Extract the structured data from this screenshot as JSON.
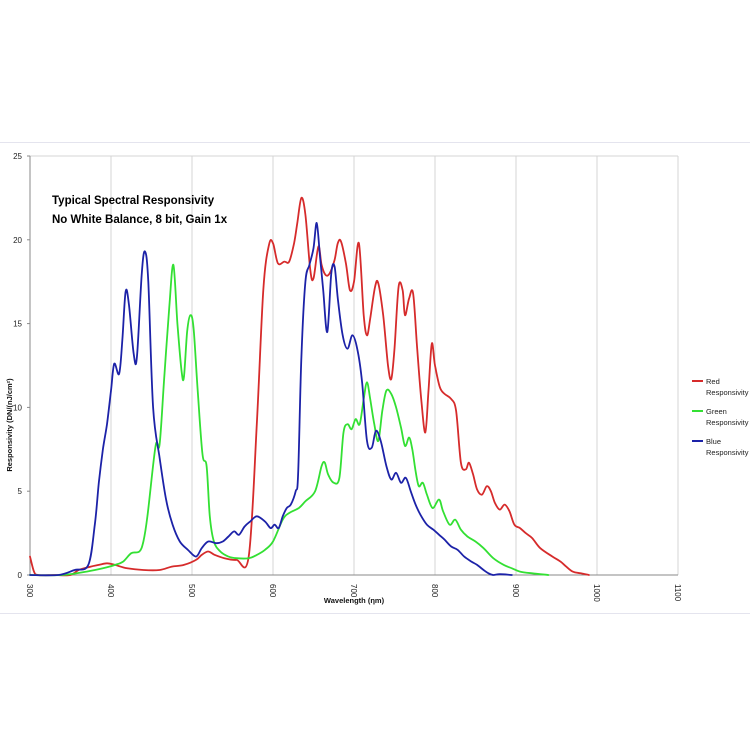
{
  "chart_data": {
    "type": "line",
    "title_lines": [
      "Typical Spectral Responsivity",
      "No White Balance, 8 bit, Gain 1x"
    ],
    "xlabel": "Wavelength (ηm)",
    "ylabel": "Responsivity (DN/(nJ/cm²)",
    "xlim": [
      300,
      1100
    ],
    "ylim": [
      0,
      25
    ],
    "x_ticks": [
      "300",
      "400",
      "500",
      "600",
      "700",
      "800",
      "900",
      "1000",
      "1100"
    ],
    "y_ticks": [
      "0",
      "5",
      "10",
      "15",
      "20",
      "25"
    ],
    "grid": "vertical",
    "legend_position": "right",
    "series": [
      {
        "name": "Red Responsivity",
        "legend_lines": [
          "Red",
          "Responsivity"
        ],
        "color": "#d62b2b",
        "points": [
          [
            300,
            1.1
          ],
          [
            305,
            0.2
          ],
          [
            310,
            0
          ],
          [
            330,
            0
          ],
          [
            350,
            0
          ],
          [
            360,
            0.3
          ],
          [
            375,
            0.5
          ],
          [
            385,
            0.6
          ],
          [
            395,
            0.7
          ],
          [
            405,
            0.6
          ],
          [
            420,
            0.4
          ],
          [
            440,
            0.3
          ],
          [
            460,
            0.3
          ],
          [
            475,
            0.5
          ],
          [
            490,
            0.6
          ],
          [
            505,
            0.9
          ],
          [
            512,
            1.2
          ],
          [
            520,
            1.4
          ],
          [
            528,
            1.2
          ],
          [
            540,
            1.0
          ],
          [
            555,
            0.9
          ],
          [
            570,
            1.1
          ],
          [
            580,
            9
          ],
          [
            588,
            17
          ],
          [
            595,
            19.7
          ],
          [
            600,
            19.8
          ],
          [
            606,
            18.6
          ],
          [
            614,
            18.7
          ],
          [
            620,
            18.7
          ],
          [
            626,
            19.8
          ],
          [
            630,
            21
          ],
          [
            635,
            22.5
          ],
          [
            640,
            21.5
          ],
          [
            646,
            18.2
          ],
          [
            650,
            17.7
          ],
          [
            656,
            19.6
          ],
          [
            660,
            18.5
          ],
          [
            665,
            17.9
          ],
          [
            670,
            18.0
          ],
          [
            676,
            18.8
          ],
          [
            680,
            19.8
          ],
          [
            684,
            19.9
          ],
          [
            690,
            18.6
          ],
          [
            695,
            17.0
          ],
          [
            700,
            17.5
          ],
          [
            706,
            19.8
          ],
          [
            712,
            15.5
          ],
          [
            716,
            14.3
          ],
          [
            720,
            15.3
          ],
          [
            726,
            17.2
          ],
          [
            730,
            17.4
          ],
          [
            736,
            15.5
          ],
          [
            742,
            12.5
          ],
          [
            746,
            11.7
          ],
          [
            750,
            13.5
          ],
          [
            755,
            17.2
          ],
          [
            760,
            17.0
          ],
          [
            763,
            15.5
          ],
          [
            768,
            16.5
          ],
          [
            773,
            16.8
          ],
          [
            778,
            13.5
          ],
          [
            783,
            10.5
          ],
          [
            788,
            8.5
          ],
          [
            792,
            11
          ],
          [
            796,
            13.8
          ],
          [
            800,
            12.5
          ],
          [
            806,
            11.2
          ],
          [
            812,
            10.8
          ],
          [
            820,
            10.5
          ],
          [
            826,
            9.8
          ],
          [
            832,
            6.7
          ],
          [
            838,
            6.3
          ],
          [
            842,
            6.7
          ],
          [
            847,
            6.0
          ],
          [
            852,
            5.1
          ],
          [
            858,
            4.8
          ],
          [
            864,
            5.3
          ],
          [
            869,
            5.0
          ],
          [
            874,
            4.3
          ],
          [
            880,
            3.9
          ],
          [
            886,
            4.2
          ],
          [
            892,
            3.8
          ],
          [
            898,
            3.0
          ],
          [
            905,
            2.8
          ],
          [
            912,
            2.5
          ],
          [
            920,
            2.2
          ],
          [
            930,
            1.6
          ],
          [
            945,
            1.1
          ],
          [
            955,
            0.8
          ],
          [
            962,
            0.5
          ],
          [
            970,
            0.2
          ],
          [
            980,
            0.1
          ],
          [
            990,
            0
          ]
        ]
      },
      {
        "name": "Green Responsivity",
        "legend_lines": [
          "Green",
          "Responsivity"
        ],
        "color": "#33e033",
        "points": [
          [
            300,
            0
          ],
          [
            340,
            0
          ],
          [
            370,
            0.2
          ],
          [
            390,
            0.4
          ],
          [
            405,
            0.6
          ],
          [
            415,
            0.8
          ],
          [
            425,
            1.3
          ],
          [
            435,
            1.4
          ],
          [
            440,
            2.0
          ],
          [
            445,
            3.5
          ],
          [
            455,
            7.7
          ],
          [
            460,
            7.8
          ],
          [
            466,
            12
          ],
          [
            472,
            16
          ],
          [
            477,
            18.5
          ],
          [
            482,
            15
          ],
          [
            487,
            12.2
          ],
          [
            490,
            11.8
          ],
          [
            494,
            14.5
          ],
          [
            498,
            15.5
          ],
          [
            502,
            14.7
          ],
          [
            507,
            11
          ],
          [
            513,
            7.2
          ],
          [
            518,
            6.5
          ],
          [
            522,
            3.5
          ],
          [
            527,
            2.0
          ],
          [
            535,
            1.4
          ],
          [
            545,
            1.1
          ],
          [
            555,
            1.0
          ],
          [
            570,
            1.0
          ],
          [
            580,
            1.2
          ],
          [
            590,
            1.5
          ],
          [
            600,
            2.0
          ],
          [
            612,
            3.3
          ],
          [
            620,
            3.7
          ],
          [
            632,
            4.0
          ],
          [
            640,
            4.4
          ],
          [
            652,
            5.0
          ],
          [
            660,
            6.5
          ],
          [
            664,
            6.7
          ],
          [
            668,
            6.0
          ],
          [
            675,
            5.5
          ],
          [
            682,
            5.8
          ],
          [
            687,
            8.5
          ],
          [
            692,
            9.0
          ],
          [
            697,
            8.7
          ],
          [
            702,
            9.3
          ],
          [
            707,
            9.0
          ],
          [
            712,
            10.5
          ],
          [
            716,
            11.5
          ],
          [
            720,
            10.5
          ],
          [
            725,
            9.0
          ],
          [
            730,
            8.0
          ],
          [
            735,
            9.8
          ],
          [
            740,
            11.0
          ],
          [
            746,
            10.8
          ],
          [
            752,
            10.0
          ],
          [
            758,
            8.8
          ],
          [
            763,
            7.7
          ],
          [
            768,
            8.2
          ],
          [
            772,
            7.5
          ],
          [
            776,
            6.2
          ],
          [
            780,
            5.3
          ],
          [
            785,
            5.5
          ],
          [
            790,
            4.8
          ],
          [
            797,
            4.0
          ],
          [
            805,
            4.5
          ],
          [
            810,
            3.8
          ],
          [
            818,
            3.0
          ],
          [
            825,
            3.3
          ],
          [
            832,
            2.7
          ],
          [
            840,
            2.3
          ],
          [
            850,
            2.0
          ],
          [
            860,
            1.6
          ],
          [
            872,
            1.0
          ],
          [
            885,
            0.6
          ],
          [
            895,
            0.4
          ],
          [
            905,
            0.2
          ],
          [
            920,
            0.1
          ],
          [
            940,
            0
          ]
        ]
      },
      {
        "name": "Blue Responsivity",
        "legend_lines": [
          "Blue",
          "Responsivity"
        ],
        "color": "#1c22a8",
        "points": [
          [
            300,
            0
          ],
          [
            335,
            0
          ],
          [
            355,
            0.3
          ],
          [
            372,
            0.6
          ],
          [
            380,
            3
          ],
          [
            385,
            5.5
          ],
          [
            390,
            7.5
          ],
          [
            395,
            9
          ],
          [
            400,
            11
          ],
          [
            404,
            12.6
          ],
          [
            410,
            12.0
          ],
          [
            414,
            14
          ],
          [
            418,
            16.9
          ],
          [
            422,
            16.2
          ],
          [
            428,
            13.2
          ],
          [
            432,
            13.0
          ],
          [
            438,
            18
          ],
          [
            442,
            19.3
          ],
          [
            446,
            17.5
          ],
          [
            452,
            10
          ],
          [
            460,
            7.0
          ],
          [
            468,
            4.5
          ],
          [
            476,
            3.0
          ],
          [
            485,
            2.0
          ],
          [
            495,
            1.5
          ],
          [
            505,
            1.1
          ],
          [
            512,
            1.6
          ],
          [
            520,
            2.0
          ],
          [
            530,
            1.9
          ],
          [
            538,
            2.0
          ],
          [
            545,
            2.3
          ],
          [
            552,
            2.6
          ],
          [
            558,
            2.4
          ],
          [
            565,
            2.9
          ],
          [
            572,
            3.2
          ],
          [
            580,
            3.5
          ],
          [
            590,
            3.2
          ],
          [
            597,
            2.8
          ],
          [
            602,
            3.0
          ],
          [
            607,
            2.8
          ],
          [
            612,
            3.5
          ],
          [
            617,
            4.0
          ],
          [
            622,
            4.2
          ],
          [
            628,
            5.0
          ],
          [
            631,
            6.0
          ],
          [
            635,
            13
          ],
          [
            640,
            17.5
          ],
          [
            645,
            18.5
          ],
          [
            650,
            19.5
          ],
          [
            654,
            21.0
          ],
          [
            658,
            19.0
          ],
          [
            662,
            17.0
          ],
          [
            667,
            14.5
          ],
          [
            672,
            18
          ],
          [
            676,
            18.4
          ],
          [
            680,
            16.5
          ],
          [
            686,
            14.3
          ],
          [
            692,
            13.5
          ],
          [
            698,
            14.3
          ],
          [
            704,
            13.5
          ],
          [
            710,
            11.5
          ],
          [
            716,
            8
          ],
          [
            722,
            7.6
          ],
          [
            727,
            8.6
          ],
          [
            733,
            8.0
          ],
          [
            740,
            6.5
          ],
          [
            746,
            5.7
          ],
          [
            752,
            6.1
          ],
          [
            758,
            5.5
          ],
          [
            764,
            5.8
          ],
          [
            770,
            5.0
          ],
          [
            776,
            4.2
          ],
          [
            782,
            3.6
          ],
          [
            790,
            3.0
          ],
          [
            798,
            2.7
          ],
          [
            805,
            2.4
          ],
          [
            812,
            2.1
          ],
          [
            820,
            1.7
          ],
          [
            828,
            1.5
          ],
          [
            836,
            1.1
          ],
          [
            845,
            0.8
          ],
          [
            852,
            0.6
          ],
          [
            860,
            0.3
          ],
          [
            866,
            0.1
          ],
          [
            872,
            0.0
          ],
          [
            880,
            0.05
          ],
          [
            895,
            0
          ]
        ]
      }
    ]
  }
}
